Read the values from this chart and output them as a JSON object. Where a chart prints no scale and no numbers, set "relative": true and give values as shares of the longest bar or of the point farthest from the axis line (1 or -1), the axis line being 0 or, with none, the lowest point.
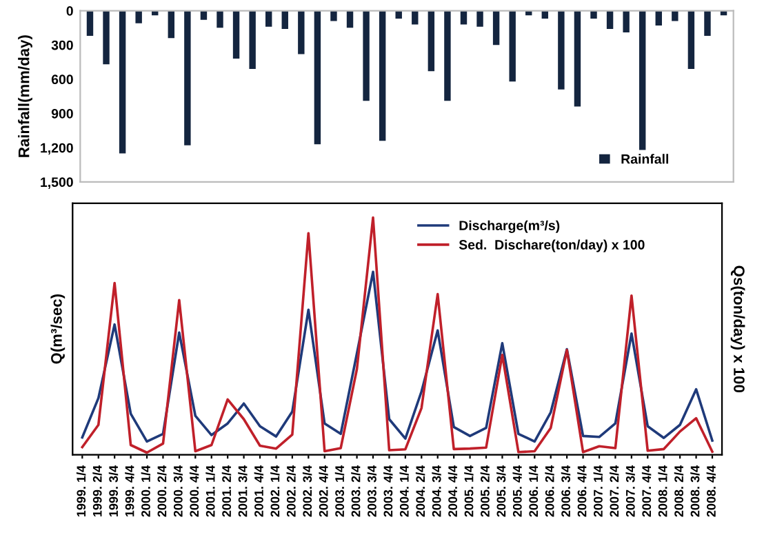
{
  "chart_data": [
    {
      "type": "bar",
      "ylabel": "Rainfall(mm/day)",
      "categories": [
        null,
        null,
        null,
        null,
        null,
        null,
        null,
        null,
        null,
        null,
        null,
        null,
        null,
        null,
        null,
        null,
        null,
        null,
        null,
        null,
        null,
        null,
        null,
        null,
        null,
        null,
        null,
        null,
        null,
        null,
        null,
        null,
        null,
        null,
        null,
        null,
        null,
        null,
        null,
        null
      ],
      "series": [
        {
          "name": "Rainfall",
          "color": "#14253f",
          "values": [
            220,
            470,
            1250,
            110,
            40,
            240,
            1180,
            80,
            150,
            420,
            510,
            140,
            160,
            380,
            1170,
            90,
            150,
            790,
            1140,
            70,
            120,
            530,
            790,
            120,
            140,
            300,
            620,
            40,
            70,
            690,
            840,
            70,
            160,
            190,
            1220,
            130,
            90,
            510,
            220,
            40
          ]
        }
      ],
      "ylim": [
        1500,
        0
      ],
      "yticks": [
        0,
        300,
        600,
        900,
        {
          "value": 1200,
          "label": "1,200"
        },
        {
          "value": 1500,
          "label": "1,500"
        }
      ],
      "tick_labels": "y",
      "legend": "bottom right",
      "grid": false
    },
    {
      "type": "line",
      "ylabel": "Q(m³/sec)",
      "y2label": "Qs(ton/day) x 100",
      "relative": true,
      "categories": [
        "1999. 1/4",
        "1999. 2/4",
        "1999. 3/4",
        "1999. 4/4",
        "2000. 1/4",
        "2000. 2/4",
        "2000. 3/4",
        "2000. 4/4",
        "2001. 1/4",
        "2001. 2/4",
        "2001. 3/4",
        "2001. 4/4",
        "2002. 1/4",
        "2002. 2/4",
        "2002. 3/4",
        "2002. 4/4",
        "2003. 1/4",
        "2003. 2/4",
        "2003. 3/4",
        "2003. 4/4",
        "2004. 1/4",
        "2004. 2/4",
        "2004. 3/4",
        "2004. 4/4",
        "2005. 1/4",
        "2005. 2/4",
        "2005. 3/4",
        "2005. 4/4",
        "2006. 1/4",
        "2006. 2/4",
        "2006. 3/4",
        "2006. 4/4",
        "2007. 1/4",
        "2007. 2/4",
        "2007. 3/4",
        "2007. 4/4",
        "2008. 1/4",
        "2008. 2/4",
        "2008. 3/4",
        "2008. 4/4"
      ],
      "series": [
        {
          "name": "Discharge(m³/s)",
          "color": "#1f3a7a",
          "values": [
            0.073,
            0.239,
            0.549,
            0.173,
            0.056,
            0.088,
            0.515,
            0.164,
            0.083,
            0.132,
            0.216,
            0.12,
            0.077,
            0.182,
            0.611,
            0.132,
            0.088,
            0.427,
            0.771,
            0.15,
            0.068,
            0.267,
            0.524,
            0.117,
            0.079,
            0.113,
            0.47,
            0.088,
            0.056,
            0.179,
            0.445,
            0.079,
            0.075,
            0.132,
            0.511,
            0.12,
            0.071,
            0.126,
            0.276,
            0.06
          ]
        },
        {
          "name": "Sed.  Dischare(ton/day) x 100",
          "color": "#c0202a",
          "values": [
            0.032,
            0.126,
            0.724,
            0.041,
            0.009,
            0.047,
            0.652,
            0.015,
            0.041,
            0.233,
            0.15,
            0.038,
            0.026,
            0.085,
            0.934,
            0.015,
            0.028,
            0.361,
            1,
            0.019,
            0.023,
            0.197,
            0.677,
            0.024,
            0.026,
            0.03,
            0.421,
            0.011,
            0.015,
            0.113,
            0.442,
            0.011,
            0.036,
            0.028,
            0.671,
            0.017,
            0.024,
            0.098,
            0.154,
            0.013
          ]
        }
      ],
      "tick_labels": "x",
      "legend": "top right",
      "grid": false,
      "marker": "none",
      "line_style": "solid"
    }
  ]
}
